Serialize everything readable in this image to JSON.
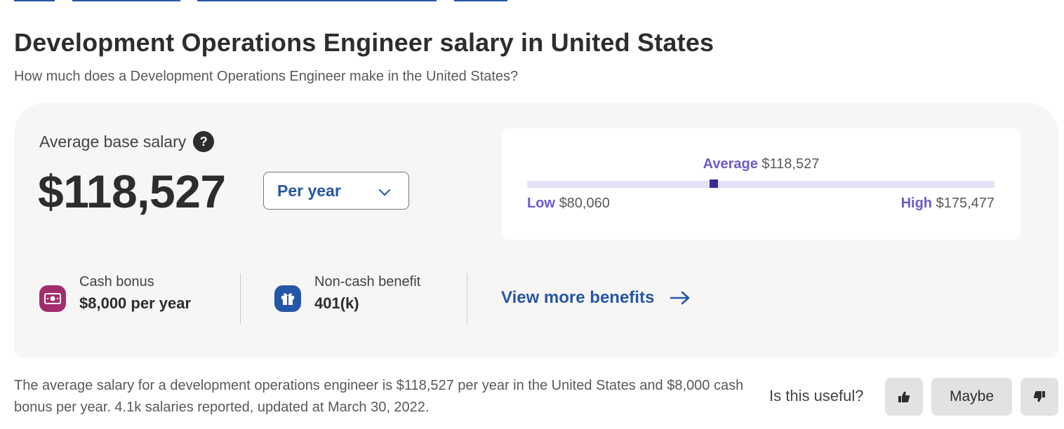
{
  "page": {
    "title": "Development Operations Engineer salary in United States",
    "subtitle": "How much does a Development Operations Engineer make in the United States?"
  },
  "salary_card": {
    "average_label": "Average base salary",
    "help_glyph": "?",
    "average_value": "$118,527",
    "period_select": {
      "selected": "Per year"
    },
    "range": {
      "average_label": "Average",
      "average_value": "$118,527",
      "low_label": "Low",
      "low_value": "$80,060",
      "high_label": "High",
      "high_value": "$175,477",
      "marker_fraction": 0.4
    }
  },
  "benefits": [
    {
      "label": "Cash bonus",
      "value": "$8,000 per year",
      "icon": "cash-icon",
      "color": "#a9252b"
    },
    {
      "label": "Non-cash benefit",
      "value": "401(k)",
      "icon": "gift-icon",
      "color": "#2557a7"
    }
  ],
  "more_benefits_link": "View more benefits",
  "summary": "The average salary for a development operations engineer is $118,527 per year in the United States and $8,000 cash bonus per year. 4.1k salaries reported, updated at March 30, 2022.",
  "feedback": {
    "question": "Is this useful?",
    "maybe_label": "Maybe"
  },
  "colors": {
    "accent_blue": "#2557a7",
    "range_purple": "#6e5ac9",
    "marker_dark": "#3b2a91",
    "cash_icon_bg": "#a32c6e",
    "gift_icon_bg": "#2557a7"
  }
}
